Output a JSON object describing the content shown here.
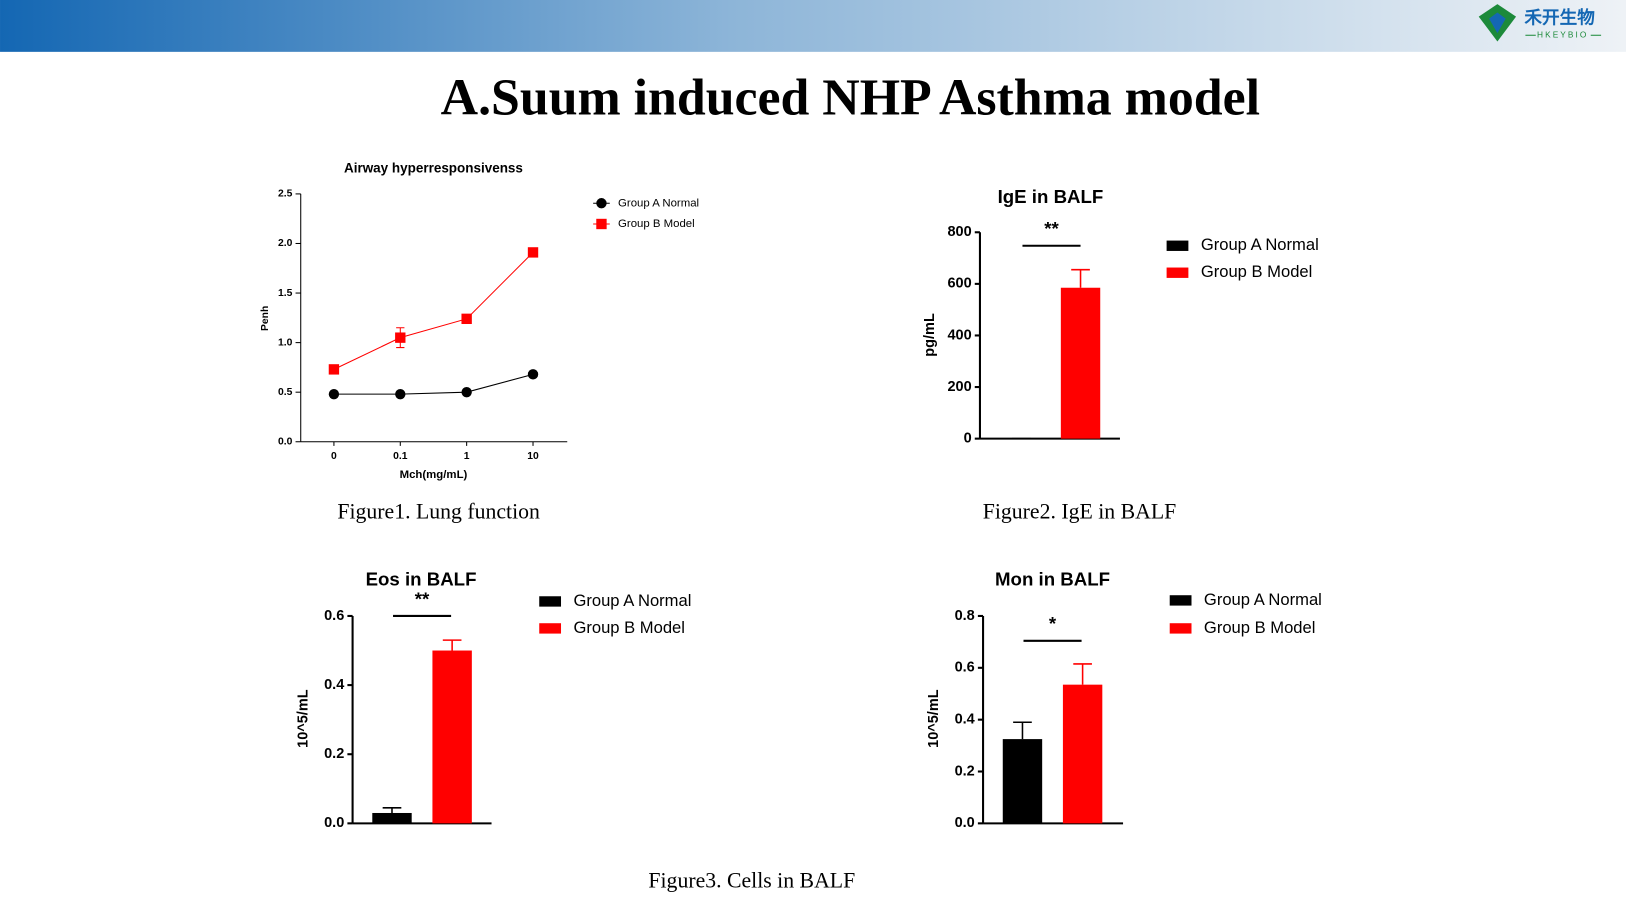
{
  "header": {
    "title": "A.Suum induced NHP Asthma model",
    "logo_text": "禾开生物",
    "logo_subtext": "HKEYBIO"
  },
  "captions": [
    "Figure1. Lung function",
    "Figure2. IgE in BALF",
    "Figure3. Cells in BALF"
  ],
  "chart_data": [
    {
      "type": "line",
      "title": "Airway hyperresponsivenss",
      "x_label": "Mch(mg/mL)",
      "y_label": "Penh",
      "categories": [
        "0",
        "0.1",
        "1",
        "10"
      ],
      "series": [
        {
          "name": "Group A Normal",
          "color": "#000000",
          "marker": "circle",
          "values": [
            0.48,
            0.48,
            0.5,
            0.68
          ],
          "errors": [
            0.02,
            0.02,
            0.02,
            0.02
          ]
        },
        {
          "name": "Group B Model",
          "color": "#ff0000",
          "marker": "square",
          "values": [
            0.73,
            1.05,
            1.24,
            1.91
          ],
          "errors": [
            0.03,
            0.1,
            0.03,
            0.03
          ]
        }
      ],
      "ylim": [
        0,
        2.5
      ],
      "yticks": [
        {
          "value": 0,
          "label": "0.0"
        },
        {
          "value": 0.5,
          "label": "0.5"
        },
        {
          "value": 1,
          "label": "1.0"
        },
        {
          "value": 1.5,
          "label": "1.5"
        },
        {
          "value": 2,
          "label": "2.0"
        },
        {
          "value": 2.5,
          "label": "2.5"
        }
      ]
    },
    {
      "type": "bar",
      "title": "IgE in BALF",
      "y_label": "pg/mL",
      "annotation": "**",
      "series": [
        {
          "name": "Group A Normal",
          "color": "#000000",
          "values": [
            0
          ],
          "errors": [
            0
          ]
        },
        {
          "name": "Group B Model",
          "color": "#ff0000",
          "values": [
            585
          ],
          "errors": [
            70
          ]
        }
      ],
      "ylim": [
        0,
        800
      ],
      "yticks": [
        0,
        200,
        400,
        600,
        800
      ]
    },
    {
      "type": "bar",
      "title": "Eos in BALF",
      "y_label": "10^5/mL",
      "annotation": "**",
      "series": [
        {
          "name": "Group A Normal",
          "color": "#000000",
          "values": [
            0.03
          ],
          "errors": [
            0.015
          ]
        },
        {
          "name": "Group B Model",
          "color": "#ff0000",
          "values": [
            0.5
          ],
          "errors": [
            0.03
          ]
        }
      ],
      "ylim": [
        0,
        0.6
      ],
      "yticks": [
        {
          "value": 0,
          "label": "0.0"
        },
        0.2,
        0.4,
        0.6
      ]
    },
    {
      "type": "bar",
      "title": "Mon in BALF",
      "y_label": "10^5/mL",
      "annotation": "*",
      "series": [
        {
          "name": "Group A Normal",
          "color": "#000000",
          "values": [
            0.325
          ],
          "errors": [
            0.065
          ]
        },
        {
          "name": "Group B Model",
          "color": "#ff0000",
          "values": [
            0.535
          ],
          "errors": [
            0.08
          ]
        }
      ],
      "ylim": [
        0,
        0.8
      ],
      "yticks": [
        {
          "value": 0,
          "label": "0.0"
        },
        0.2,
        0.4,
        0.6,
        0.8
      ]
    }
  ]
}
